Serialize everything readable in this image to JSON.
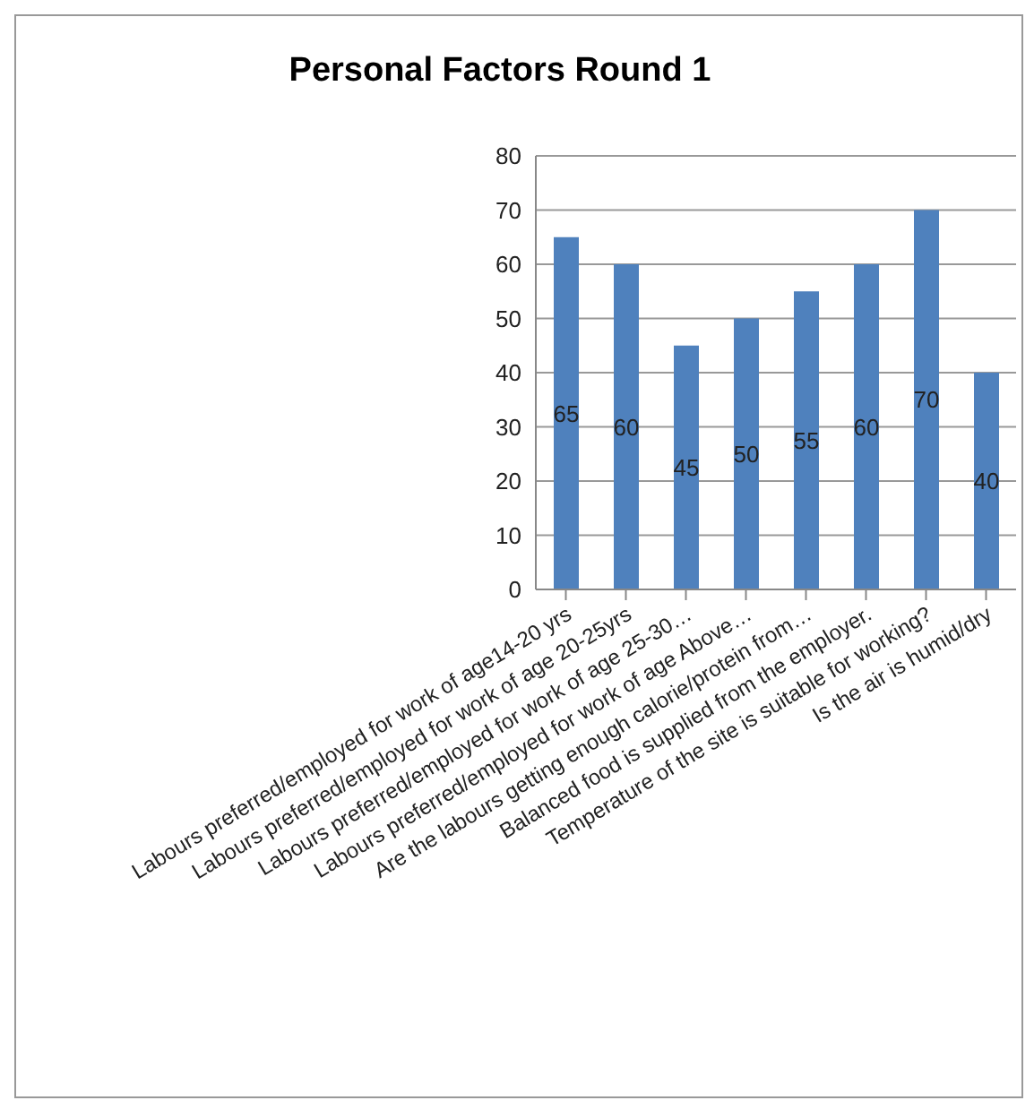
{
  "chart_data": {
    "type": "bar",
    "title": "Personal Factors Round 1",
    "categories": [
      "Labours preferred/employed for work of age14-20 yrs",
      "Labours preferred/employed for work of age 20-25yrs",
      "Labours preferred/employed for work of age 25-30…",
      "Labours preferred/employed for work of age Above…",
      "Are the labours getting enough calorie/protein from…",
      "Balanced food is supplied from the employer.",
      "Temperature of the site is suitable for working?",
      "Is the air is humid/dry"
    ],
    "values": [
      65,
      60,
      45,
      50,
      55,
      60,
      70,
      40
    ],
    "color": "#4f81bd",
    "ylim": [
      0,
      80
    ],
    "yticks": [
      0,
      10,
      20,
      30,
      40,
      50,
      60,
      70,
      80
    ],
    "grid": "y",
    "data_labels": true
  }
}
